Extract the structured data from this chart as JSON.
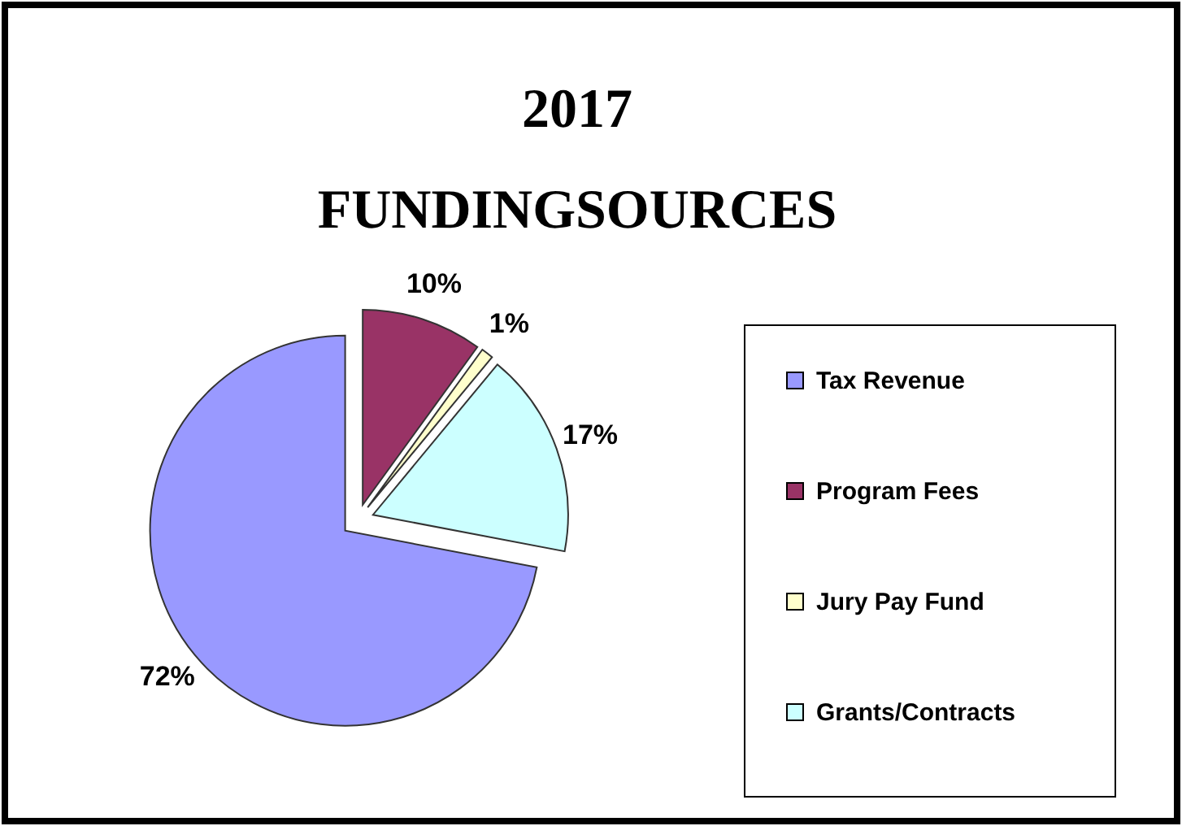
{
  "chart_data": {
    "type": "pie",
    "title": "2017 FUNDINGSOURCES",
    "categories": [
      "Tax Revenue",
      "Program Fees",
      "Jury Pay Fund",
      "Grants/Contracts"
    ],
    "values": [
      72,
      10,
      1,
      17
    ],
    "colors": [
      "#9999ff",
      "#993366",
      "#ffffcc",
      "#ccffff"
    ],
    "value_labels": [
      "72%",
      "10%",
      "1%",
      "17%"
    ],
    "legend": "right"
  }
}
